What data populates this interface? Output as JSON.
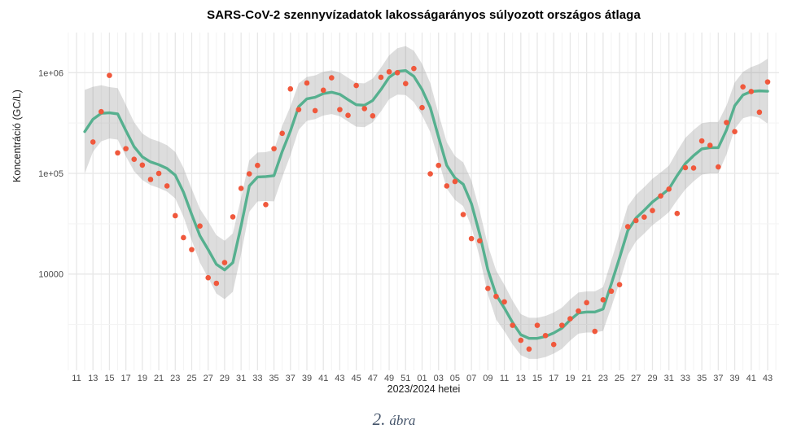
{
  "title": "SARS-CoV-2 szennyvízadatok lakosságarányos súlyozott országos átlaga",
  "caption": {
    "number": "2.",
    "label": "ábra"
  },
  "x_axis": {
    "label": "2023/2024 hetei",
    "tick_labels": [
      "11",
      "13",
      "15",
      "17",
      "19",
      "21",
      "23",
      "25",
      "27",
      "29",
      "31",
      "33",
      "35",
      "37",
      "39",
      "41",
      "43",
      "45",
      "47",
      "49",
      "51",
      "01",
      "03",
      "05",
      "07",
      "09",
      "11",
      "13",
      "15",
      "17",
      "19",
      "21",
      "23",
      "25",
      "27",
      "29",
      "31",
      "33",
      "35",
      "37",
      "39",
      "41",
      "43"
    ]
  },
  "y_axis": {
    "label": "Koncentráció (GC/L)",
    "ticks": [
      {
        "label": "1e+06",
        "value": 1000000
      },
      {
        "label": "1e+05",
        "value": 100000
      },
      {
        "label": "10000",
        "value": 10000
      }
    ]
  },
  "colors": {
    "smooth_line": "#56B08F",
    "points": "#F0583C",
    "band": "#808080",
    "band_opacity": 0.27,
    "grid_major": "#E7E7E7",
    "grid_minor": "#F3F3F3",
    "axis_text": "#4D4D4D",
    "caption_text": "#44546A"
  },
  "chart_data": {
    "type": "scatter",
    "overlay": "smooth-line-with-confidence-band",
    "x_unit": "ISO-week",
    "x_start": "2023-W11",
    "x_end": "2024-W43",
    "yscale": "log10",
    "ylim": [
      1500,
      2000000
    ],
    "grid": "on",
    "legend": "none",
    "points": {
      "start_week": "2023-W13",
      "weekly_values": [
        205000,
        410000,
        940000,
        160000,
        176000,
        138000,
        121000,
        87000,
        100000,
        75000,
        38000,
        23000,
        17500,
        30000,
        9200,
        8100,
        13000,
        37000,
        71000,
        99000,
        120000,
        49000,
        176000,
        250000,
        690000,
        430000,
        790000,
        420000,
        670000,
        890000,
        430000,
        377000,
        746000,
        440000,
        373000,
        900000,
        1020000,
        1000000,
        780000,
        1100000,
        450000,
        99000,
        120000,
        75000,
        83000,
        39000,
        22500,
        21400,
        7200,
        6000,
        5300,
        3100,
        2200,
        1800,
        3100,
        2450,
        2000,
        3100,
        3600,
        4300,
        5200,
        2700,
        5550,
        6760,
        7850,
        29600,
        34000,
        36800,
        42700,
        59700,
        69800,
        40000,
        114000,
        113000,
        210000,
        190000,
        116000,
        320000,
        260000,
        724000,
        650000,
        405000,
        810000
      ]
    },
    "smooth_line": {
      "start_week": "2023-W12",
      "weekly_values": [
        260000,
        345000,
        395000,
        400000,
        390000,
        266000,
        184000,
        146000,
        130000,
        122000,
        112000,
        96000,
        65000,
        39000,
        24000,
        17500,
        12500,
        11000,
        13000,
        30000,
        75000,
        92000,
        93000,
        95000,
        165000,
        264000,
        460000,
        550000,
        570000,
        620000,
        640000,
        610000,
        540000,
        480000,
        475000,
        530000,
        680000,
        900000,
        1030000,
        1050000,
        920000,
        680000,
        450000,
        230000,
        120000,
        90000,
        78000,
        50000,
        25000,
        11000,
        6200,
        4600,
        3300,
        2500,
        2300,
        2300,
        2400,
        2600,
        2900,
        3500,
        4100,
        4200,
        4200,
        4500,
        8000,
        14500,
        27000,
        36000,
        43000,
        52000,
        60000,
        70000,
        95000,
        125000,
        150000,
        175000,
        180000,
        180000,
        270000,
        470000,
        600000,
        650000,
        660000,
        655000
      ]
    },
    "confidence_band": {
      "start_week": "2023-W12",
      "multiplicative_factors": [
        2.6,
        2.1,
        1.9,
        1.8,
        1.8,
        1.8,
        1.75,
        1.7,
        1.7,
        1.7,
        1.7,
        1.7,
        1.75,
        1.8,
        1.85,
        1.9,
        1.95,
        1.95,
        1.95,
        1.9,
        1.8,
        1.75,
        1.75,
        1.8,
        1.8,
        1.75,
        1.7,
        1.65,
        1.65,
        1.65,
        1.65,
        1.65,
        1.65,
        1.65,
        1.65,
        1.65,
        1.65,
        1.65,
        1.7,
        1.75,
        1.8,
        1.8,
        1.75,
        1.7,
        1.7,
        1.65,
        1.65,
        1.7,
        1.7,
        1.75,
        1.75,
        1.7,
        1.65,
        1.6,
        1.6,
        1.6,
        1.6,
        1.6,
        1.6,
        1.6,
        1.6,
        1.6,
        1.6,
        1.65,
        1.7,
        1.75,
        1.75,
        1.7,
        1.7,
        1.7,
        1.7,
        1.7,
        1.75,
        1.8,
        1.8,
        1.8,
        1.8,
        1.8,
        1.75,
        1.7,
        1.7,
        1.75,
        1.85,
        2.1
      ]
    }
  }
}
